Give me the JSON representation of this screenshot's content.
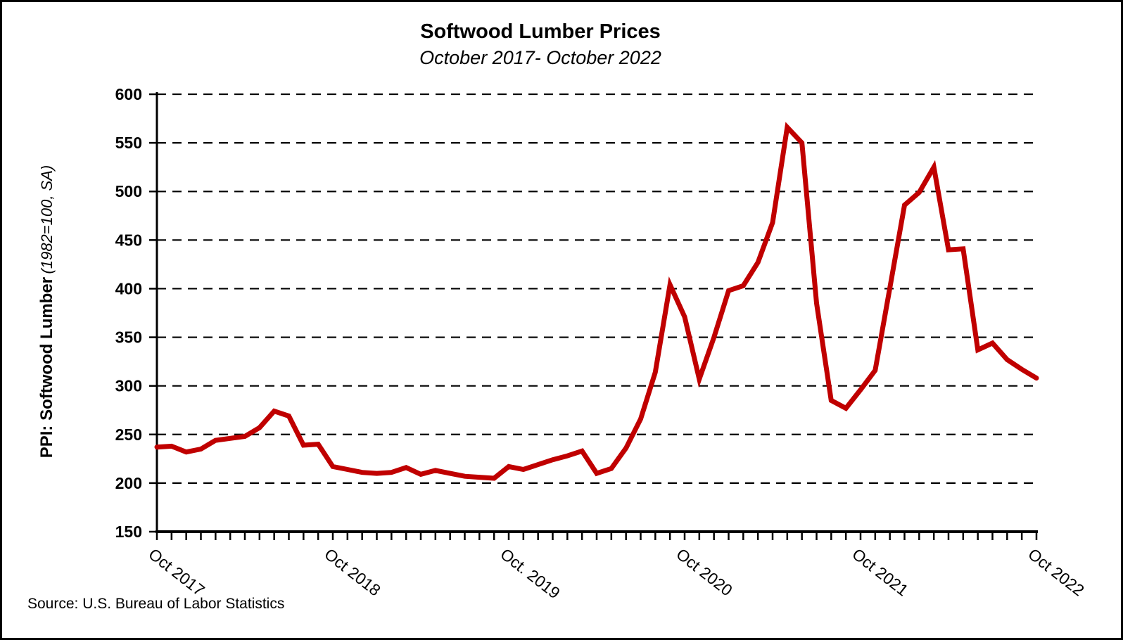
{
  "page": {
    "background": "#ffffff",
    "border_color": "#000000"
  },
  "chart": {
    "title": "Softwood Lumber Prices",
    "subtitle": "October 2017- October 2022",
    "y_axis_title_line1": "PPI: Softwood Lumber",
    "y_axis_title_line2": "(1982=100, SA)",
    "source": "Source: U.S. Bureau of Labor Statistics"
  },
  "chart_data": {
    "type": "line",
    "title": "Softwood Lumber Prices",
    "subtitle": "October 2017- October 2022",
    "ylabel": "PPI: Softwood Lumber (1982=100, SA)",
    "xlabel": "",
    "ylim": [
      150,
      600
    ],
    "y_ticks": [
      150,
      200,
      250,
      300,
      350,
      400,
      450,
      500,
      550,
      600
    ],
    "grid": "horizontal-dashed",
    "legend": "none",
    "line_color": "#C00000",
    "axis_color": "#000000",
    "x_start": "Oct 2017",
    "x_end": "Oct 2022",
    "x_interval": "monthly",
    "x_tick_count": 61,
    "x_tick_labels": [
      {
        "label": "Oct 2017",
        "month_index": 0
      },
      {
        "label": "Oct 2018",
        "month_index": 12
      },
      {
        "label": "Oct. 2019",
        "month_index": 24
      },
      {
        "label": "Oct 2020",
        "month_index": 36
      },
      {
        "label": "Oct 2021",
        "month_index": 48
      },
      {
        "label": "Oct 2022",
        "month_index": 60
      }
    ],
    "series": [
      {
        "name": "PPI: Softwood Lumber (1982=100, SA)",
        "values": [
          237,
          238,
          232,
          235,
          244,
          246,
          248,
          257,
          274,
          269,
          239,
          240,
          217,
          214,
          211,
          210,
          211,
          216,
          209,
          213,
          210,
          207,
          206,
          205,
          217,
          214,
          219,
          224,
          228,
          233,
          210,
          215,
          236,
          266,
          314,
          404,
          371,
          307,
          350,
          398,
          403,
          427,
          468,
          566,
          550,
          385,
          285,
          277,
          296,
          316,
          401,
          486,
          499,
          525,
          440,
          441,
          337,
          344,
          327,
          317,
          308
        ]
      }
    ],
    "source": "Source: U.S. Bureau of Labor Statistics"
  }
}
